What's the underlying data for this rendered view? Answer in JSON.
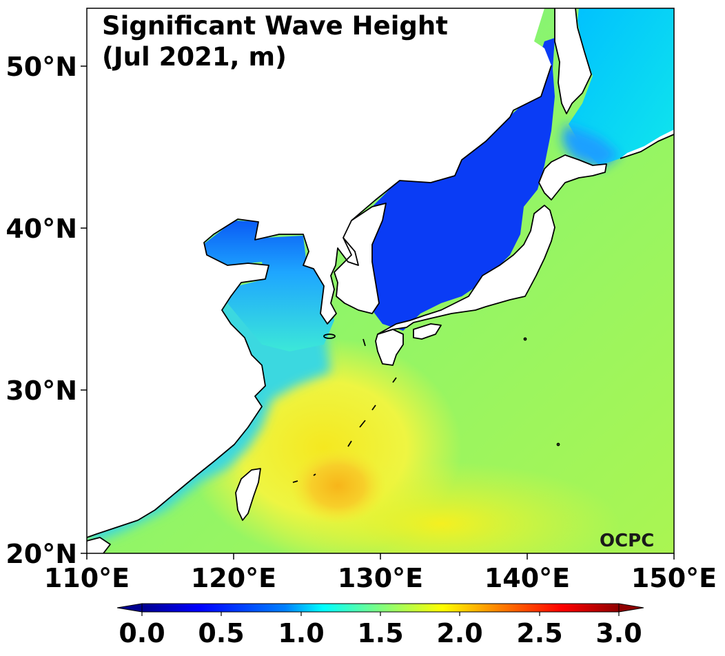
{
  "title": {
    "line1": "Significant Wave Height",
    "line2": "(Jul 2021, m)"
  },
  "logo": {
    "text": "OCPC"
  },
  "map": {
    "lon_range": [
      110,
      150
    ],
    "lat_range": [
      20,
      53.7
    ],
    "lon_ticks": [
      "110°E",
      "120°E",
      "130°E",
      "140°E",
      "150°E"
    ],
    "lat_ticks": [
      "20°N",
      "30°N",
      "40°N",
      "50°N"
    ],
    "lon_tick_values": [
      110,
      120,
      130,
      140,
      150
    ],
    "lat_tick_values": [
      20,
      30,
      40,
      50
    ]
  },
  "colorbar": {
    "min": 0.0,
    "max": 3.0,
    "extend": "both",
    "colormap": "jet",
    "ticks": [
      "0.0",
      "0.5",
      "1.0",
      "1.5",
      "2.0",
      "2.5",
      "3.0"
    ],
    "tick_values": [
      0.0,
      0.5,
      1.0,
      1.5,
      2.0,
      2.5,
      3.0
    ],
    "colors": [
      "#00007f",
      "#0000ff",
      "#007fff",
      "#00ffff",
      "#7fff7f",
      "#ffff00",
      "#ff7f00",
      "#ff0000",
      "#7f0000"
    ]
  },
  "colors": {
    "land": "#ffffff",
    "coastline": "#000000",
    "yellow_sea": "#23b8ff",
    "japan_sea": "#0a3cf5",
    "pacific": "#9cf55a",
    "east_china_sea": "#f0f533",
    "max_patch": "#f5c020"
  }
}
